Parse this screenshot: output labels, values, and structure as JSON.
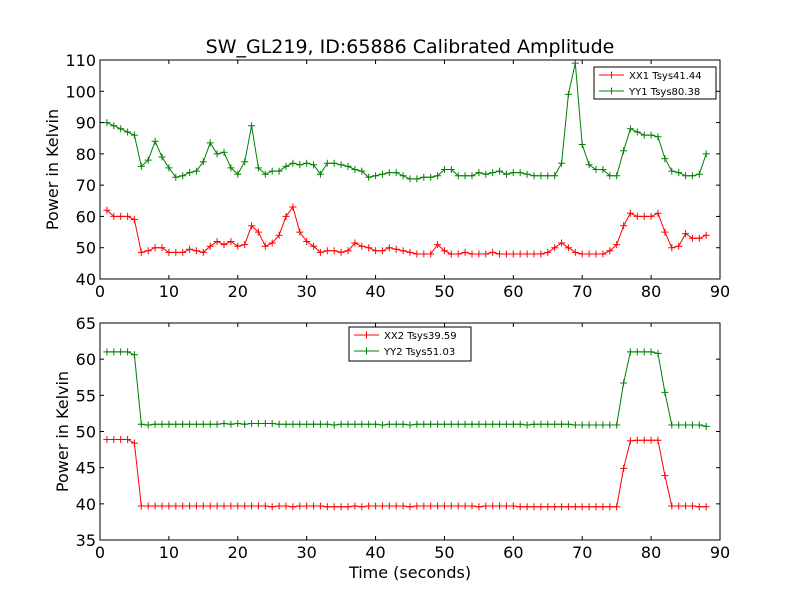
{
  "chart_data": [
    {
      "type": "line",
      "title": "SW_GL219, ID:65886 Calibrated Amplitude",
      "xlabel": "",
      "ylabel": "Power in Kelvin",
      "xlim": [
        0,
        90
      ],
      "ylim": [
        40,
        110
      ],
      "xticks": [
        0,
        10,
        20,
        30,
        40,
        50,
        60,
        70,
        80,
        90
      ],
      "yticks": [
        40,
        50,
        60,
        70,
        80,
        90,
        100,
        110
      ],
      "legend_position": "top-right",
      "grid": false,
      "series": [
        {
          "name": "XX1 Tsys41.44",
          "color": "#ff0000",
          "marker": "+",
          "x": [
            1,
            2,
            3,
            4,
            5,
            6,
            7,
            8,
            9,
            10,
            11,
            12,
            13,
            14,
            15,
            16,
            17,
            18,
            19,
            20,
            21,
            22,
            23,
            24,
            25,
            26,
            27,
            28,
            29,
            30,
            31,
            32,
            33,
            34,
            35,
            36,
            37,
            38,
            39,
            40,
            41,
            42,
            43,
            44,
            45,
            46,
            47,
            48,
            49,
            50,
            51,
            52,
            53,
            54,
            55,
            56,
            57,
            58,
            59,
            60,
            61,
            62,
            63,
            64,
            65,
            66,
            67,
            68,
            69,
            70,
            71,
            72,
            73,
            74,
            75,
            76,
            77,
            78,
            79,
            80,
            81,
            82,
            83,
            84,
            85,
            86,
            87,
            88
          ],
          "y": [
            62,
            60,
            60,
            60,
            59,
            48.5,
            49,
            50,
            50,
            48.5,
            48.5,
            48.5,
            49.5,
            49,
            48.5,
            50.5,
            52,
            51,
            52,
            50.5,
            51,
            57,
            55,
            50.5,
            51.5,
            54,
            60,
            63,
            55,
            52,
            50.5,
            48.5,
            49,
            49,
            48.5,
            49,
            51.5,
            50.5,
            50,
            49,
            49,
            50,
            49.5,
            49,
            48.5,
            48,
            48,
            48,
            51,
            49,
            48,
            48,
            48.5,
            48,
            48,
            48,
            48.5,
            48,
            48,
            48,
            48,
            48,
            48,
            48,
            48.5,
            50,
            51.5,
            50,
            48.5,
            48,
            48,
            48,
            48,
            49,
            51,
            57,
            61,
            60,
            60,
            60,
            61,
            55,
            50,
            50.5,
            54.5,
            53,
            53,
            54
          ]
        },
        {
          "name": "YY1 Tsys80.38",
          "color": "#008000",
          "marker": "+",
          "x": [
            1,
            2,
            3,
            4,
            5,
            6,
            7,
            8,
            9,
            10,
            11,
            12,
            13,
            14,
            15,
            16,
            17,
            18,
            19,
            20,
            21,
            22,
            23,
            24,
            25,
            26,
            27,
            28,
            29,
            30,
            31,
            32,
            33,
            34,
            35,
            36,
            37,
            38,
            39,
            40,
            41,
            42,
            43,
            44,
            45,
            46,
            47,
            48,
            49,
            50,
            51,
            52,
            53,
            54,
            55,
            56,
            57,
            58,
            59,
            60,
            61,
            62,
            63,
            64,
            65,
            66,
            67,
            68,
            69,
            70,
            71,
            72,
            73,
            74,
            75,
            76,
            77,
            78,
            79,
            80,
            81,
            82,
            83,
            84,
            85,
            86,
            87,
            88
          ],
          "y": [
            90,
            89,
            88,
            87,
            86,
            76,
            78,
            84,
            79,
            75.5,
            72.5,
            73,
            74,
            74.5,
            77.5,
            83.5,
            80,
            80.5,
            75.5,
            73.5,
            77.5,
            89,
            75.5,
            73.5,
            74.5,
            74.5,
            76,
            77,
            76.5,
            77,
            76.5,
            73.5,
            77,
            77,
            76.5,
            76,
            75,
            74.5,
            72.5,
            73,
            73.5,
            74,
            74,
            73,
            72,
            72,
            72.5,
            72.5,
            73,
            75,
            75,
            73,
            73,
            73,
            74,
            73.5,
            74,
            74.5,
            73.5,
            74,
            74,
            73.5,
            73,
            73,
            73,
            73,
            77,
            99,
            109,
            83,
            76.5,
            75,
            75,
            73,
            73,
            81,
            88,
            87,
            86,
            86,
            85.5,
            78.5,
            74.5,
            74,
            73,
            73,
            73.5,
            80
          ]
        }
      ]
    },
    {
      "type": "line",
      "title": "",
      "xlabel": "Time (seconds)",
      "ylabel": "Power in Kelvin",
      "xlim": [
        0,
        90
      ],
      "ylim": [
        35,
        65
      ],
      "xticks": [
        0,
        10,
        20,
        30,
        40,
        50,
        60,
        70,
        80,
        90
      ],
      "yticks": [
        35,
        40,
        45,
        50,
        55,
        60,
        65
      ],
      "legend_position": "top-center",
      "grid": false,
      "series": [
        {
          "name": "XX2 Tsys39.59",
          "color": "#ff0000",
          "marker": "+",
          "x": [
            1,
            2,
            3,
            4,
            5,
            6,
            7,
            8,
            9,
            10,
            11,
            12,
            13,
            14,
            15,
            16,
            17,
            18,
            19,
            20,
            21,
            22,
            23,
            24,
            25,
            26,
            27,
            28,
            29,
            30,
            31,
            32,
            33,
            34,
            35,
            36,
            37,
            38,
            39,
            40,
            41,
            42,
            43,
            44,
            45,
            46,
            47,
            48,
            49,
            50,
            51,
            52,
            53,
            54,
            55,
            56,
            57,
            58,
            59,
            60,
            61,
            62,
            63,
            64,
            65,
            66,
            67,
            68,
            69,
            70,
            71,
            72,
            73,
            74,
            75,
            76,
            77,
            78,
            79,
            80,
            81,
            82,
            83,
            84,
            85,
            86,
            87,
            88
          ],
          "y": [
            48.9,
            48.9,
            48.9,
            48.9,
            48.4,
            39.7,
            39.7,
            39.7,
            39.7,
            39.7,
            39.7,
            39.7,
            39.7,
            39.7,
            39.7,
            39.7,
            39.7,
            39.7,
            39.7,
            39.7,
            39.7,
            39.7,
            39.7,
            39.7,
            39.6,
            39.7,
            39.7,
            39.6,
            39.7,
            39.7,
            39.7,
            39.7,
            39.6,
            39.6,
            39.6,
            39.6,
            39.7,
            39.6,
            39.7,
            39.7,
            39.7,
            39.7,
            39.7,
            39.7,
            39.6,
            39.7,
            39.7,
            39.7,
            39.7,
            39.7,
            39.7,
            39.7,
            39.7,
            39.7,
            39.6,
            39.7,
            39.7,
            39.7,
            39.7,
            39.7,
            39.6,
            39.6,
            39.6,
            39.6,
            39.6,
            39.6,
            39.6,
            39.6,
            39.6,
            39.6,
            39.6,
            39.6,
            39.6,
            39.6,
            39.6,
            44.9,
            48.7,
            48.8,
            48.8,
            48.8,
            48.8,
            43.9,
            39.7,
            39.7,
            39.7,
            39.7,
            39.6,
            39.6
          ]
        },
        {
          "name": "YY2 Tsys51.03",
          "color": "#008000",
          "marker": "+",
          "x": [
            1,
            2,
            3,
            4,
            5,
            6,
            7,
            8,
            9,
            10,
            11,
            12,
            13,
            14,
            15,
            16,
            17,
            18,
            19,
            20,
            21,
            22,
            23,
            24,
            25,
            26,
            27,
            28,
            29,
            30,
            31,
            32,
            33,
            34,
            35,
            36,
            37,
            38,
            39,
            40,
            41,
            42,
            43,
            44,
            45,
            46,
            47,
            48,
            49,
            50,
            51,
            52,
            53,
            54,
            55,
            56,
            57,
            58,
            59,
            60,
            61,
            62,
            63,
            64,
            65,
            66,
            67,
            68,
            69,
            70,
            71,
            72,
            73,
            74,
            75,
            76,
            77,
            78,
            79,
            80,
            81,
            82,
            83,
            84,
            85,
            86,
            87,
            88
          ],
          "y": [
            61,
            61,
            61,
            61,
            60.6,
            51,
            50.9,
            51,
            51,
            51,
            51,
            51,
            51,
            51,
            51,
            51,
            51,
            51.1,
            51,
            51.1,
            51,
            51.1,
            51.1,
            51.1,
            51.1,
            51,
            51,
            51,
            51,
            51,
            51,
            51,
            51,
            50.9,
            51,
            51,
            51,
            51,
            51,
            51,
            50.9,
            51,
            51,
            51,
            50.9,
            51,
            51,
            51,
            51,
            51,
            51,
            51,
            51,
            51,
            51,
            51,
            51,
            51,
            51,
            51,
            51,
            50.9,
            51,
            51,
            51,
            51,
            51,
            51,
            50.9,
            50.9,
            50.9,
            50.9,
            50.9,
            50.9,
            50.9,
            56.7,
            61,
            61,
            61,
            61,
            60.8,
            55.4,
            50.9,
            50.9,
            50.9,
            50.9,
            50.9,
            50.7
          ]
        }
      ]
    }
  ]
}
